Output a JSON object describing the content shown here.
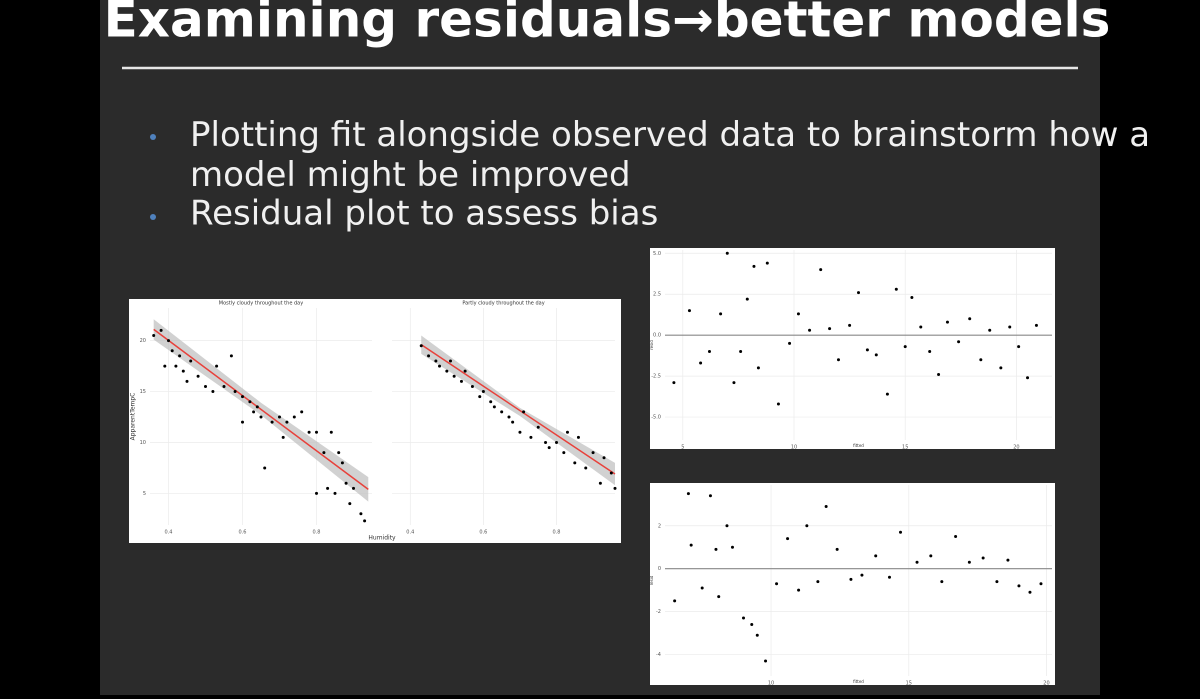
{
  "title": "Examining residuals→better models",
  "bullets": [
    "Plotting fit alongside observed data to brainstorm how a model might be improved",
    "Residual plot to assess bias"
  ],
  "chart_data": [
    {
      "type": "scatter",
      "title": "Mostly cloudy throughout the day",
      "x_label": "Humidity",
      "y_label": "ApparentTempC",
      "xlim": [
        0.35,
        0.95
      ],
      "ylim": [
        1.9,
        23.2
      ],
      "xticks": [
        0.4,
        0.6,
        0.8
      ],
      "yticks": [
        5,
        10,
        15,
        20
      ],
      "grid": true,
      "x": [
        0.36,
        0.38,
        0.39,
        0.4,
        0.41,
        0.42,
        0.43,
        0.44,
        0.45,
        0.46,
        0.48,
        0.5,
        0.52,
        0.53,
        0.55,
        0.57,
        0.58,
        0.6,
        0.6,
        0.62,
        0.63,
        0.64,
        0.65,
        0.66,
        0.68,
        0.7,
        0.71,
        0.72,
        0.74,
        0.76,
        0.78,
        0.8,
        0.8,
        0.82,
        0.83,
        0.84,
        0.85,
        0.86,
        0.87,
        0.88,
        0.89,
        0.9,
        0.92,
        0.93
      ],
      "values": [
        20.5,
        21,
        17.5,
        20,
        19,
        17.5,
        18.5,
        17,
        16,
        18,
        16.5,
        15.5,
        15,
        17.5,
        15.5,
        18.5,
        15,
        14.5,
        12,
        14,
        13,
        13.5,
        12.5,
        7.5,
        12,
        12.5,
        10.5,
        12,
        12.5,
        13,
        11,
        11,
        5,
        9,
        5.5,
        11,
        5,
        9,
        8,
        6,
        4,
        5.5,
        3,
        2.3
      ],
      "color": "#000000",
      "fit": {
        "x": [
          0.36,
          0.94
        ],
        "values": [
          21.1,
          5.4
        ],
        "color": "#e8413b"
      },
      "ribbon": {
        "x": [
          0.36,
          0.65,
          0.94
        ],
        "lower": [
          20.1,
          12.7,
          4.2
        ],
        "upper": [
          22.1,
          13.9,
          6.6
        ],
        "color": "#bdbdbd"
      }
    },
    {
      "type": "scatter",
      "title": "Partly cloudy throughout the day",
      "xlim": [
        0.35,
        0.96
      ],
      "ylim": [
        1.9,
        23.2
      ],
      "xticks": [
        0.4,
        0.6,
        0.8
      ],
      "grid": true,
      "x": [
        0.43,
        0.45,
        0.47,
        0.48,
        0.5,
        0.51,
        0.52,
        0.54,
        0.55,
        0.57,
        0.59,
        0.6,
        0.62,
        0.63,
        0.65,
        0.67,
        0.68,
        0.7,
        0.71,
        0.73,
        0.75,
        0.77,
        0.78,
        0.8,
        0.82,
        0.83,
        0.85,
        0.86,
        0.88,
        0.9,
        0.92,
        0.93,
        0.95,
        0.96
      ],
      "values": [
        19.5,
        18.5,
        18,
        17.5,
        17,
        18,
        16.5,
        16,
        17,
        15.5,
        14.5,
        15,
        14,
        13.5,
        13,
        12.5,
        12,
        11,
        13,
        10.5,
        11.5,
        10,
        9.5,
        10,
        9,
        11,
        8,
        10.5,
        7.5,
        9,
        6,
        8.5,
        7,
        5.5
      ],
      "color": "#000000",
      "fit": {
        "x": [
          0.43,
          0.96
        ],
        "values": [
          19.6,
          6.9
        ],
        "color": "#e8413b"
      },
      "ribbon": {
        "x": [
          0.43,
          0.7,
          0.96
        ],
        "lower": [
          18.7,
          12.6,
          5.8
        ],
        "upper": [
          20.5,
          13.4,
          8.0
        ],
        "color": "#bdbdbd"
      }
    },
    {
      "type": "scatter",
      "x_label": "fitted",
      "y_label": "resid",
      "xlim": [
        4.2,
        21.6
      ],
      "ylim": [
        -6.4,
        5.2
      ],
      "xticks": [
        5,
        10,
        15,
        20
      ],
      "yticks": [
        {
          "value": -5,
          "label": "-5.0"
        },
        {
          "value": -2.5,
          "label": "-2.5"
        },
        {
          "value": 0,
          "label": "0.0"
        },
        {
          "value": 2.5,
          "label": "2.5"
        },
        {
          "value": 5,
          "label": "5.0"
        }
      ],
      "grid": true,
      "hline": 0,
      "x": [
        4.6,
        5.3,
        5.8,
        6.2,
        6.7,
        7.0,
        7.3,
        7.6,
        7.9,
        8.2,
        8.4,
        8.8,
        9.3,
        9.8,
        10.2,
        10.7,
        11.2,
        11.6,
        12.0,
        12.5,
        12.9,
        13.3,
        13.7,
        14.2,
        14.6,
        15.0,
        15.3,
        15.7,
        16.1,
        16.5,
        16.9,
        17.4,
        17.9,
        18.4,
        18.8,
        19.3,
        19.7,
        20.1,
        20.5,
        20.9
      ],
      "values": [
        -2.9,
        1.5,
        -1.7,
        -1.0,
        1.3,
        5,
        -2.9,
        -1.0,
        2.2,
        4.2,
        -2.0,
        4.4,
        -4.2,
        -0.5,
        1.3,
        0.3,
        4.0,
        0.4,
        -1.5,
        0.6,
        2.6,
        -0.9,
        -1.2,
        -3.6,
        2.8,
        -0.7,
        2.3,
        0.5,
        -1.0,
        -2.4,
        0.8,
        -0.4,
        1.0,
        -1.5,
        0.3,
        -2.0,
        0.5,
        -0.7,
        -2.6,
        0.6
      ],
      "color": "#000000"
    },
    {
      "type": "scatter",
      "x_label": "fitted",
      "y_label": "resid",
      "xlim": [
        6.15,
        20.2
      ],
      "ylim": [
        -5.0,
        3.9
      ],
      "xticks": [
        10,
        15,
        20
      ],
      "yticks": [
        -4,
        -2,
        0,
        2
      ],
      "grid": true,
      "hline": 0,
      "x": [
        6.5,
        7.0,
        7.1,
        7.5,
        7.8,
        8.0,
        8.1,
        8.4,
        8.6,
        9.0,
        9.5,
        9.8,
        10.2,
        10.6,
        11.0,
        11.3,
        11.7,
        12.0,
        12.4,
        12.9,
        13.3,
        13.8,
        14.3,
        14.7,
        15.3,
        15.8,
        16.2,
        16.7,
        17.2,
        17.7,
        18.2,
        18.6,
        19.0,
        19.4,
        19.8,
        9.3
      ],
      "values": [
        -1.5,
        3.5,
        1.1,
        -0.9,
        3.4,
        0.9,
        -1.3,
        2.0,
        1.0,
        -2.3,
        -3.1,
        -4.3,
        -0.7,
        1.4,
        -1.0,
        2.0,
        -0.6,
        2.9,
        0.9,
        -0.5,
        -0.3,
        0.6,
        -0.4,
        1.7,
        0.3,
        0.6,
        -0.6,
        1.5,
        0.3,
        0.5,
        -0.6,
        0.4,
        -0.8,
        -1.1,
        -0.7,
        -2.6
      ],
      "color": "#000000"
    }
  ]
}
